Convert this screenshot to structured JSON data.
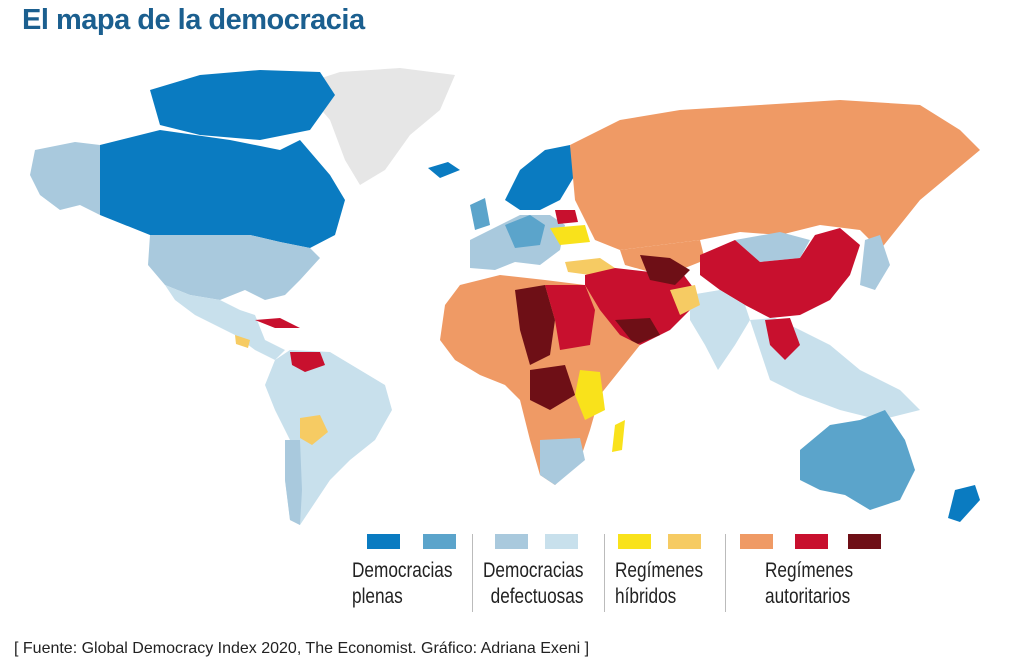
{
  "title": "El mapa de la democracia",
  "colors": {
    "full_democracy_high": "#0a7bc1",
    "full_democracy_low": "#5ba4cb",
    "flawed_democracy_high": "#a9c9dd",
    "flawed_democracy_low": "#c8e0ec",
    "hybrid_high": "#f9e21b",
    "hybrid_low": "#f6cb63",
    "authoritarian_1": "#ef9a65",
    "authoritarian_2": "#c8102e",
    "authoritarian_3": "#6e0f16",
    "no_data": "#e6e6e6"
  },
  "legend": [
    {
      "line1": "Democracias",
      "line2": "plenas"
    },
    {
      "line1": "Democracias",
      "line2": "defectuosas"
    },
    {
      "line1": "Regímenes",
      "line2": "híbridos"
    },
    {
      "line1": "Regímenes",
      "line2": "autoritarios"
    }
  ],
  "source": "[ Fuente: Global Democracy Index 2020, The Economist. Gráfico: Adriana Exeni ]"
}
